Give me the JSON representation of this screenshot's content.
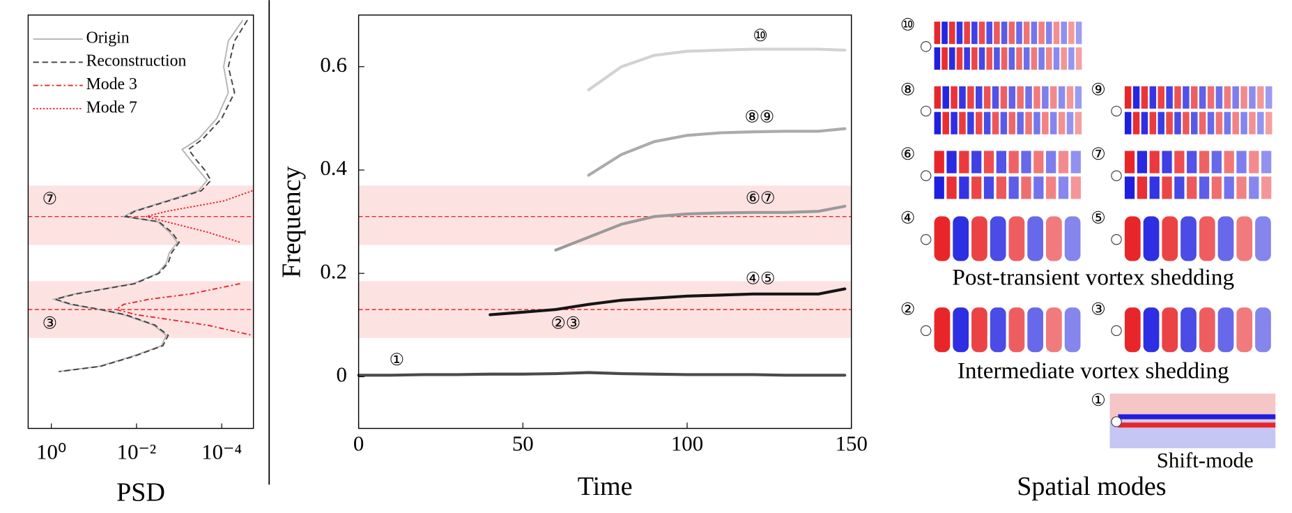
{
  "chart_data": [
    {
      "type": "line",
      "orientation": "horizontal",
      "xlabel": "PSD",
      "xscale": "log",
      "xlim": [
        3.5,
        1.8e-05
      ],
      "xticks": [
        {
          "value": 1,
          "label": "10⁰"
        },
        {
          "value": 0.01,
          "label": "10⁻²"
        },
        {
          "value": 0.0001,
          "label": "10⁻⁴"
        }
      ],
      "ylim": [
        -0.1,
        0.7
      ],
      "frequency": [
        0.69,
        0.65,
        0.6,
        0.55,
        0.5,
        0.46,
        0.44,
        0.42,
        0.4,
        0.38,
        0.36,
        0.34,
        0.32,
        0.31,
        0.3,
        0.28,
        0.26,
        0.24,
        0.22,
        0.2,
        0.18,
        0.16,
        0.15,
        0.14,
        0.13,
        0.12,
        0.1,
        0.08,
        0.06,
        0.04,
        0.02,
        0.01
      ],
      "legend": "upper left",
      "series": [
        {
          "name": "Origin",
          "color": "#b4b4b4",
          "style": "solid",
          "values": [
            3.2e-05,
            7e-05,
            9e-05,
            7e-05,
            0.00013,
            0.00035,
            0.00085,
            0.00055,
            0.00035,
            0.00022,
            0.00035,
            0.002,
            0.012,
            0.02,
            0.0032,
            0.0017,
            0.0011,
            0.0017,
            0.002,
            0.0032,
            0.012,
            0.29,
            0.87,
            0.36,
            0.075,
            0.02,
            0.004,
            0.002,
            0.0026,
            0.012,
            0.075,
            0.7
          ]
        },
        {
          "name": "Reconstruction",
          "color": "#404040",
          "style": "dashed",
          "values": [
            2.5e-05,
            5e-05,
            7e-05,
            5e-05,
            0.0001,
            0.00028,
            0.0006,
            0.0004,
            0.00025,
            0.00018,
            0.0003,
            0.0018,
            0.011,
            0.018,
            0.003,
            0.0015,
            0.001,
            0.0015,
            0.0018,
            0.003,
            0.011,
            0.27,
            0.8,
            0.33,
            0.07,
            0.018,
            0.0037,
            0.0018,
            0.0024,
            0.011,
            0.07,
            0.65
          ]
        },
        {
          "name": "Mode 3",
          "color": "#e8262a",
          "style": "dashdot",
          "values": [
            null,
            null,
            null,
            null,
            null,
            null,
            null,
            null,
            null,
            null,
            null,
            null,
            null,
            null,
            null,
            null,
            null,
            null,
            null,
            null,
            3.7e-05,
            0.00055,
            0.005,
            0.02,
            0.03,
            0.01,
            0.00022,
            1.9e-05,
            null,
            null,
            null,
            null
          ]
        },
        {
          "name": "Mode 7",
          "color": "#e8262a",
          "style": "dotted",
          "values": [
            null,
            null,
            null,
            null,
            null,
            null,
            null,
            null,
            null,
            null,
            1.9e-05,
            9e-05,
            0.002,
            0.006,
            0.002,
            0.00022,
            3.7e-05,
            null,
            null,
            null,
            null,
            null,
            null,
            null,
            null,
            null,
            null,
            null,
            null,
            null,
            null,
            null
          ]
        }
      ],
      "highlight_bands": [
        [
          0.075,
          0.185
        ],
        [
          0.255,
          0.37
        ]
      ],
      "reference_lines": [
        0.13,
        0.31
      ],
      "annotations": [
        {
          "text": "⑦",
          "color": "#e8262a"
        },
        {
          "text": "③",
          "color": "#1f1fe0"
        }
      ]
    },
    {
      "type": "line",
      "xlabel": "Time",
      "ylabel": "Frequency",
      "xlim": [
        0,
        150
      ],
      "xticks": [
        0,
        50,
        100,
        150
      ],
      "ylim": [
        -0.1,
        0.7
      ],
      "yticks": [
        0,
        0.2,
        0.4,
        0.6
      ],
      "x": [
        0,
        10,
        20,
        30,
        40,
        50,
        60,
        70,
        80,
        90,
        100,
        110,
        120,
        130,
        140,
        148
      ],
      "series": [
        {
          "name": "⑩",
          "color": "#d2d2d2",
          "values": [
            null,
            null,
            null,
            null,
            null,
            null,
            null,
            0.555,
            0.6,
            0.622,
            0.63,
            0.632,
            0.634,
            0.634,
            0.634,
            0.632
          ]
        },
        {
          "name": "⑧⑨",
          "color": "#ababab",
          "values": [
            null,
            null,
            null,
            null,
            null,
            null,
            null,
            0.39,
            0.43,
            0.455,
            0.467,
            0.472,
            0.474,
            0.475,
            0.475,
            0.48
          ]
        },
        {
          "name": "⑥⑦",
          "color": "#9a9a9a",
          "values": [
            null,
            null,
            null,
            null,
            null,
            null,
            0.245,
            0.27,
            0.295,
            0.31,
            0.315,
            0.317,
            0.318,
            0.318,
            0.32,
            0.33
          ]
        },
        {
          "name": "④⑤",
          "color": "#151515",
          "values": [
            null,
            null,
            null,
            null,
            0.12,
            0.125,
            0.13,
            0.14,
            0.148,
            0.152,
            0.156,
            0.158,
            0.16,
            0.16,
            0.16,
            0.17
          ]
        },
        {
          "name": "①",
          "color": "#4a4a4a",
          "values": [
            0.003,
            0.003,
            0.004,
            0.004,
            0.005,
            0.005,
            0.006,
            0.008,
            0.006,
            0.005,
            0.004,
            0.004,
            0.004,
            0.003,
            0.003,
            0.003
          ]
        }
      ],
      "highlight_bands": [
        [
          0.075,
          0.185
        ],
        [
          0.255,
          0.37
        ]
      ],
      "reference_lines": [
        0.13,
        0.31
      ],
      "annotations": [
        {
          "text": "②③",
          "color": "#1f1fe0"
        }
      ]
    }
  ],
  "spatial_modes": {
    "title": "Spatial modes",
    "panels": [
      "⑩",
      "⑧",
      "⑨",
      "⑥",
      "⑦",
      "④",
      "⑤",
      "②",
      "③",
      "①"
    ],
    "captions": [
      "Post-transient vortex shedding",
      "Intermediate vortex shedding",
      "Shift-mode"
    ]
  }
}
